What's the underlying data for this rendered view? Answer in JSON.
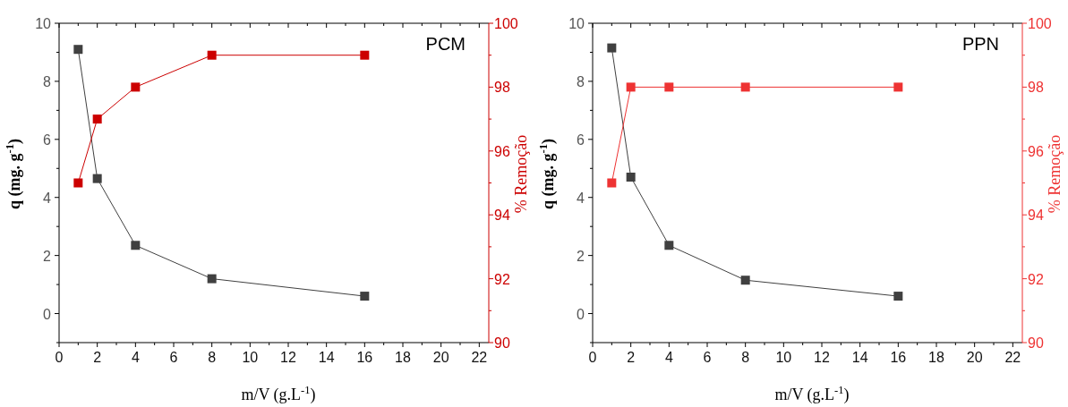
{
  "chart_data": [
    {
      "type": "line",
      "annotations": [
        "PCM"
      ],
      "xlabel": "m/V (g.L$^{-1}$)",
      "ylabel": "q (mg. g$^{-1}$)",
      "y2label": "% Remoção",
      "x": [
        1,
        2,
        4,
        8,
        16
      ],
      "series": [
        {
          "color": "#404040",
          "values": [
            9.1,
            4.65,
            2.35,
            1.2,
            0.6
          ]
        },
        {
          "color": "#cc0000",
          "values": [
            95,
            97,
            98,
            99,
            99
          ],
          "axis": "y2"
        }
      ],
      "xlim": [
        0,
        22.5
      ],
      "xticks": [
        0,
        {
          "value": 1,
          "label": null
        },
        2,
        {
          "value": 3,
          "label": null
        },
        4,
        {
          "value": 5,
          "label": null
        },
        6,
        {
          "value": 7,
          "label": null
        },
        8,
        {
          "value": 9,
          "label": null
        },
        10,
        {
          "value": 11,
          "label": null
        },
        12,
        {
          "value": 13,
          "label": null
        },
        14,
        {
          "value": 15,
          "label": null
        },
        16,
        {
          "value": 17,
          "label": null
        },
        18,
        {
          "value": 19,
          "label": null
        },
        20,
        {
          "value": 21,
          "label": null
        },
        22
      ],
      "ylim": [
        -1,
        10
      ],
      "yticks": [
        {
          "value": -1,
          "label": null
        },
        0,
        {
          "value": 1,
          "label": null
        },
        2,
        {
          "value": 3,
          "label": null
        },
        4,
        {
          "value": 5,
          "label": null
        },
        6,
        {
          "value": 7,
          "label": null
        },
        8,
        {
          "value": 9,
          "label": null
        },
        10
      ],
      "y2lim": [
        90,
        100
      ],
      "y2ticks": [
        90,
        {
          "value": 91,
          "label": null
        },
        92,
        {
          "value": 93,
          "label": null
        },
        94,
        {
          "value": 95,
          "label": null
        },
        96,
        {
          "value": 97,
          "label": null
        },
        98,
        {
          "value": 99,
          "label": null
        },
        100
      ],
      "marker": "square",
      "line_style": "solid",
      "grid": false
    },
    {
      "type": "line",
      "annotations": [
        "PPN"
      ],
      "xlabel": "m/V (g.L$^{-1}$)",
      "ylabel": "q (mg. g$^{-1}$)",
      "y2label": "% Remoção",
      "x": [
        1,
        2,
        4,
        8,
        16
      ],
      "series": [
        {
          "color": "#404040",
          "values": [
            9.15,
            4.7,
            2.35,
            1.15,
            0.6
          ]
        },
        {
          "color": "#ee3333",
          "values": [
            95,
            98,
            98,
            98,
            98
          ],
          "axis": "y2"
        }
      ],
      "xlim": [
        0,
        22.5
      ],
      "xticks": [
        0,
        {
          "value": 1,
          "label": null
        },
        2,
        {
          "value": 3,
          "label": null
        },
        4,
        {
          "value": 5,
          "label": null
        },
        6,
        {
          "value": 7,
          "label": null
        },
        8,
        {
          "value": 9,
          "label": null
        },
        10,
        {
          "value": 11,
          "label": null
        },
        12,
        {
          "value": 13,
          "label": null
        },
        14,
        {
          "value": 15,
          "label": null
        },
        16,
        {
          "value": 17,
          "label": null
        },
        18,
        {
          "value": 19,
          "label": null
        },
        20,
        {
          "value": 21,
          "label": null
        },
        22
      ],
      "ylim": [
        -1,
        10
      ],
      "yticks": [
        {
          "value": -1,
          "label": null
        },
        0,
        {
          "value": 1,
          "label": null
        },
        2,
        {
          "value": 3,
          "label": null
        },
        4,
        {
          "value": 5,
          "label": null
        },
        6,
        {
          "value": 7,
          "label": null
        },
        8,
        {
          "value": 9,
          "label": null
        },
        10
      ],
      "y2lim": [
        90,
        100
      ],
      "y2ticks": [
        90,
        {
          "value": 91,
          "label": null
        },
        92,
        {
          "value": 93,
          "label": null
        },
        94,
        {
          "value": 95,
          "label": null
        },
        96,
        {
          "value": 97,
          "label": null
        },
        98,
        {
          "value": 99,
          "label": null
        },
        100
      ],
      "marker": "square",
      "line_style": "solid",
      "grid": false
    }
  ]
}
